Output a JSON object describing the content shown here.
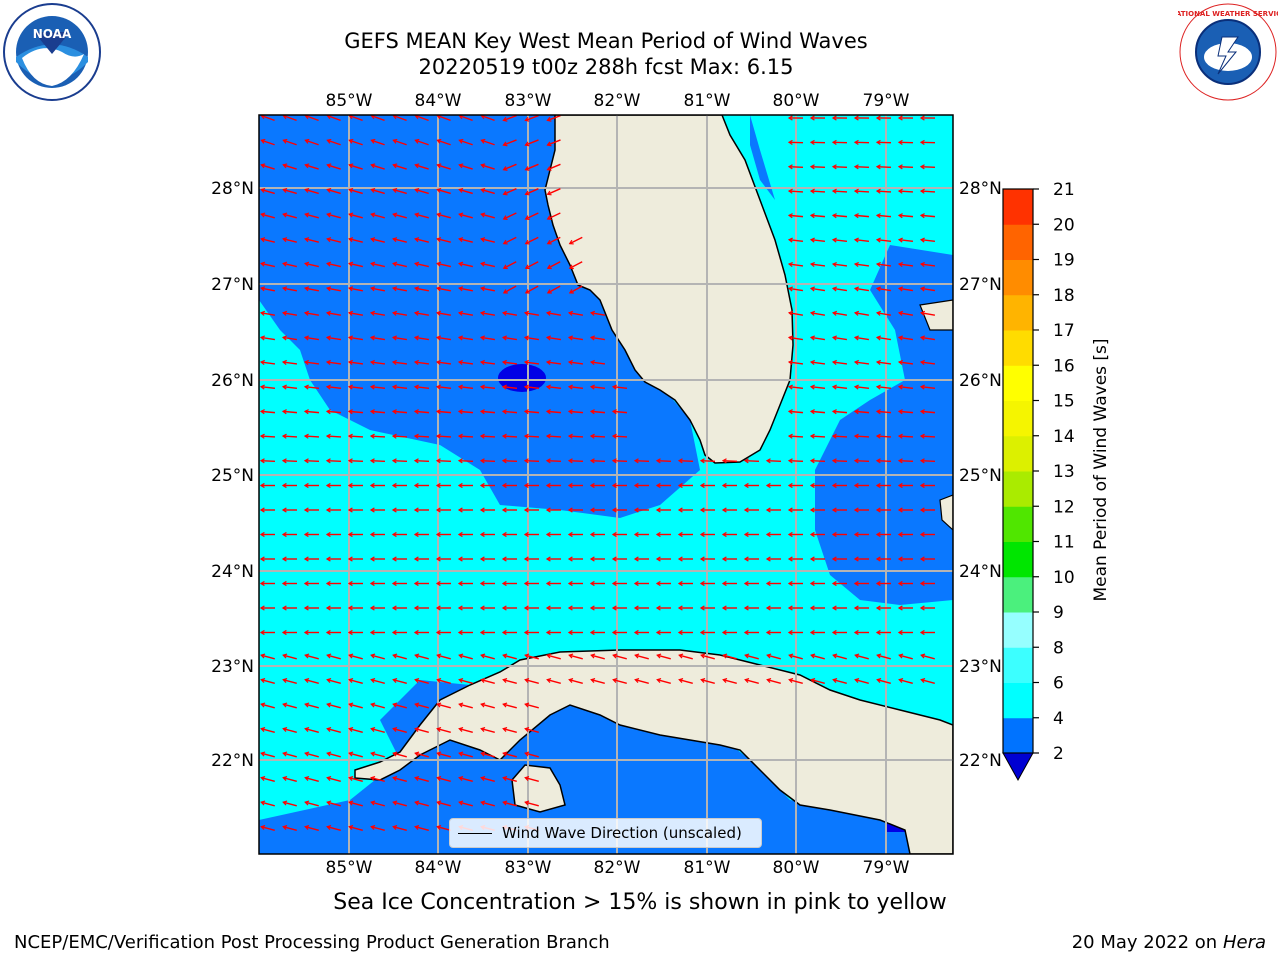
{
  "title_line1": "GEFS MEAN Key West Mean Period of Wind Waves",
  "title_line2": "20220519 t00z 288h fcst    Max: 6.15",
  "logos": {
    "left": "NOAA",
    "right": "NATIONAL WEATHER SERVICE"
  },
  "map": {
    "lon_ticks": [
      "85°W",
      "84°W",
      "83°W",
      "82°W",
      "81°W",
      "80°W",
      "79°W"
    ],
    "lat_ticks": [
      "28°N",
      "27°N",
      "26°N",
      "25°N",
      "24°N",
      "23°N",
      "22°N"
    ],
    "legend_label": "Wind Wave Direction (unscaled)",
    "colors": {
      "land": "#eeecdc",
      "band_2_4": "#0a78ff",
      "band_4_6": "#00ffff",
      "band_lt2": "#0000e6",
      "grid": "#b4b4b4",
      "arrow": "#ff0000",
      "coast": "#000000"
    }
  },
  "colorbar": {
    "label": "Mean Period of Wind Waves [s]",
    "ticks": [
      "2",
      "4",
      "6",
      "8",
      "9",
      "10",
      "11",
      "12",
      "13",
      "14",
      "15",
      "16",
      "17",
      "18",
      "19",
      "20",
      "21"
    ],
    "colors": [
      "#0073ff",
      "#00ffff",
      "#3cffff",
      "#96ffff",
      "#4bf07d",
      "#00e600",
      "#50e600",
      "#aaeb00",
      "#dcf000",
      "#f5f500",
      "#ffff00",
      "#ffdc00",
      "#ffb400",
      "#ff8c00",
      "#ff6400",
      "#ff3200",
      "#ff0000"
    ],
    "under_color": "#0000d2"
  },
  "caption": "Sea Ice Concentration > 15% is shown in pink to yellow",
  "footer_left": "NCEP/EMC/Verification Post Processing Product Generation Branch",
  "footer_right_prefix": "20 May 2022 on",
  "footer_right_host": "Hera"
}
